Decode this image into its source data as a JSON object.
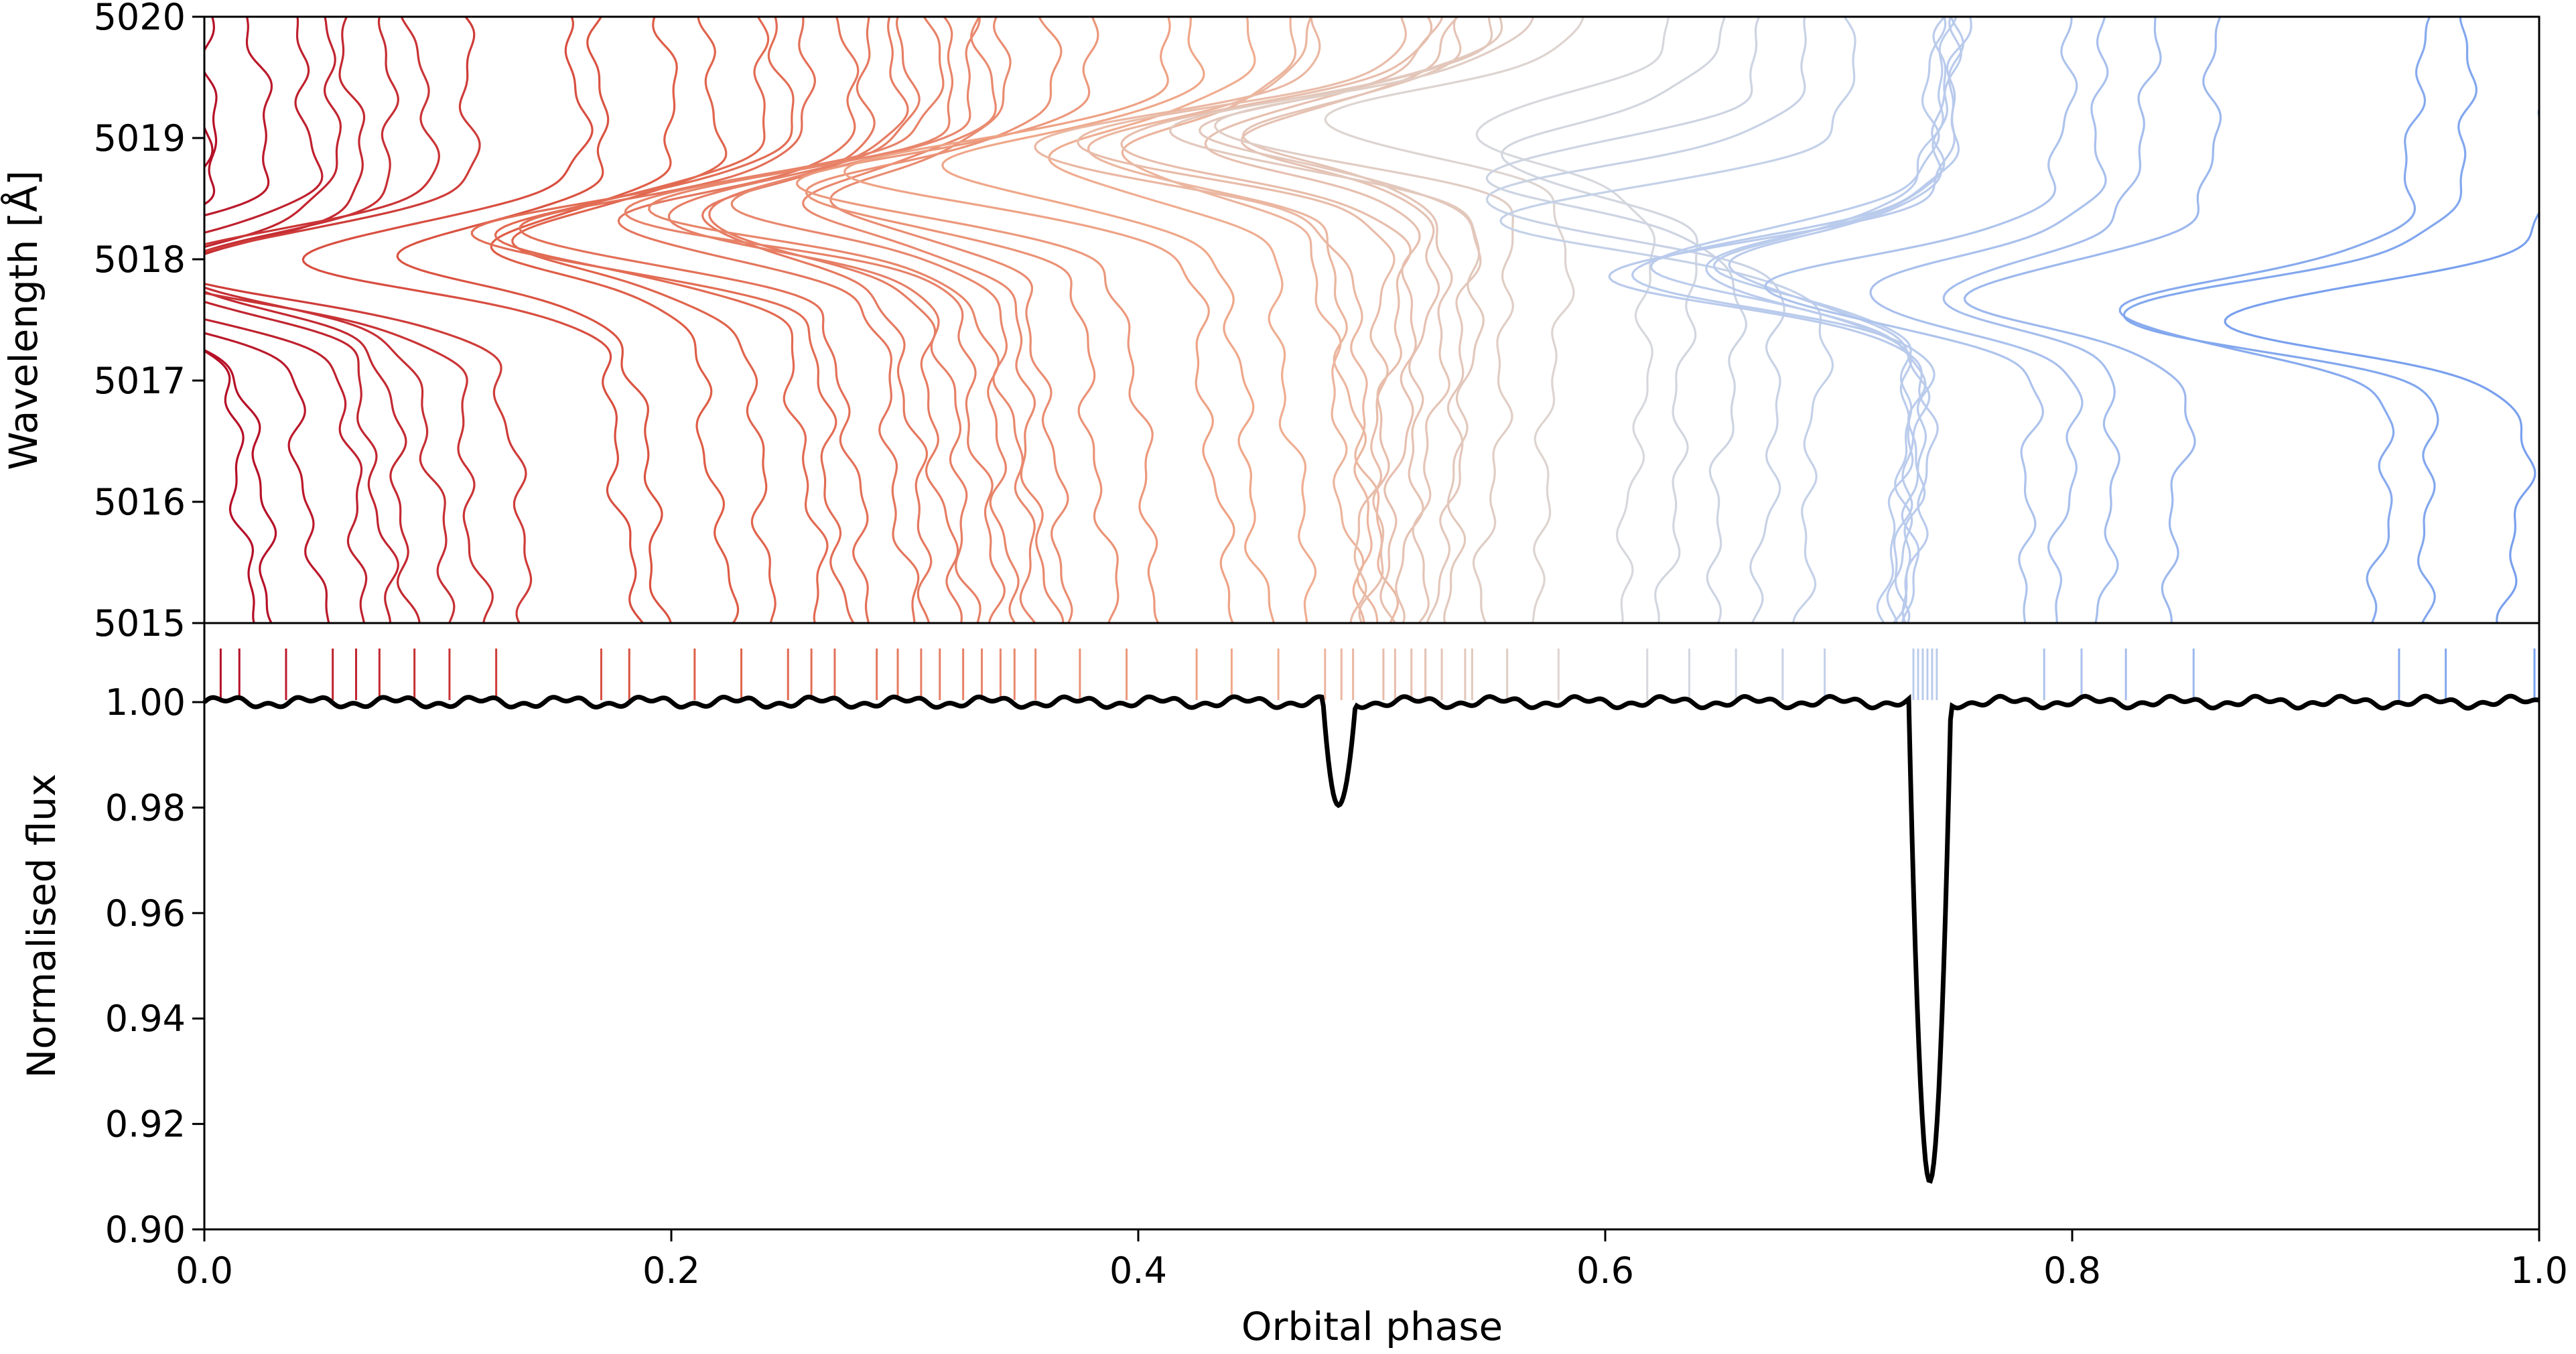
{
  "chart_data": [
    {
      "type": "line",
      "panel": "top",
      "xlabel": "",
      "ylabel": "Wavelength [Å]",
      "xlim": [
        0.0,
        1.0
      ],
      "ylim": [
        5015,
        5020
      ],
      "y_ticks": [
        5015,
        5016,
        5017,
        5018,
        5019,
        5020
      ],
      "grid": false,
      "color_scale": "red (phase 0) to grey (phase ~0.6) to blue (phase 1)",
      "line_phases": [
        0.007,
        0.015,
        0.035,
        0.055,
        0.065,
        0.075,
        0.09,
        0.105,
        0.125,
        0.17,
        0.182,
        0.21,
        0.23,
        0.25,
        0.26,
        0.27,
        0.288,
        0.297,
        0.307,
        0.315,
        0.325,
        0.333,
        0.341,
        0.347,
        0.356,
        0.375,
        0.395,
        0.425,
        0.44,
        0.46,
        0.48,
        0.487,
        0.492,
        0.505,
        0.51,
        0.517,
        0.523,
        0.53,
        0.54,
        0.543,
        0.558,
        0.58,
        0.618,
        0.636,
        0.656,
        0.676,
        0.694,
        0.732,
        0.734,
        0.736,
        0.738,
        0.74,
        0.742,
        0.788,
        0.804,
        0.823,
        0.852,
        0.94,
        0.96,
        0.998
      ],
      "series_note": "each line is a line profile drawn vertically at its orbital phase; the trailed absorption feature crosses 5018 Å near phase 0 and phase 0.74"
    },
    {
      "type": "line",
      "panel": "bottom",
      "xlabel": "Orbital phase",
      "ylabel": "Normalised flux",
      "xlim": [
        0.0,
        1.0
      ],
      "ylim": [
        0.9,
        1.015
      ],
      "x_ticks": [
        "0.0",
        "0.2",
        "0.4",
        "0.6",
        "0.8",
        "1.0"
      ],
      "y_ticks": [
        "0.90",
        "0.92",
        "0.94",
        "0.96",
        "0.98",
        "1.00"
      ],
      "grid": false,
      "series": [
        {
          "color": "#000000",
          "baseline": 1.0,
          "eclipses": [
            {
              "phase": 0.486,
              "min_flux": 0.98,
              "half_width": 0.007
            },
            {
              "phase": 0.739,
              "min_flux": 0.909,
              "half_width": 0.009
            }
          ]
        }
      ],
      "phase_markers": "vertical tick marks near flux 1.01, one per spectrum phase, colored with the same scale"
    }
  ]
}
